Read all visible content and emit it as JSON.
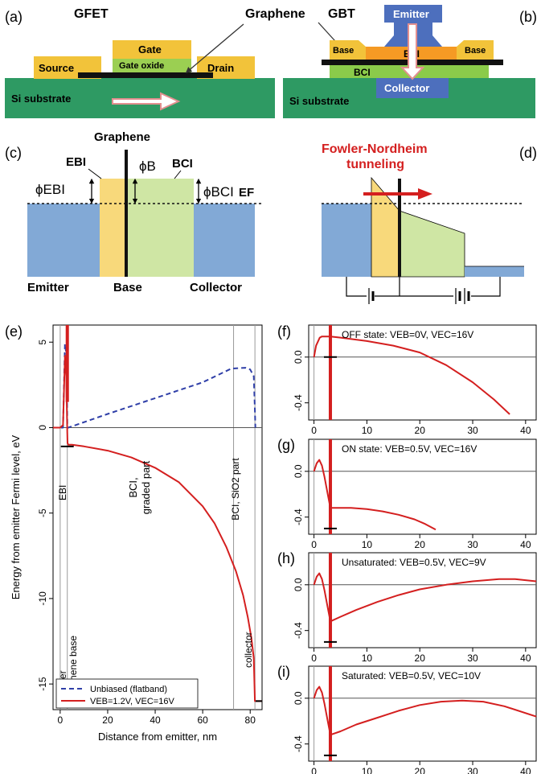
{
  "colors": {
    "substrate": "#2e9a63",
    "metal": "#f2c33a",
    "oxide": "#9bcf52",
    "graphene": "#111111",
    "ebi": "#f59a24",
    "bci": "#8bcb4a",
    "contact": "#4d6fbd",
    "emitter": "#82a9d6",
    "ebi_band": "#f8d97b",
    "bci_band": "#cfe6a4",
    "red": "#d41f1f",
    "blue_dash": "#2f3fa8"
  },
  "panel_a": {
    "letter": "(a)",
    "title": "GFET",
    "gate": "Gate",
    "gate_oxide": "Gate oxide",
    "source": "Source",
    "drain": "Drain",
    "substrate": "Si substrate",
    "graphene": "Graphene"
  },
  "panel_b": {
    "letter": "(b)",
    "title": "GBT",
    "emitter": "Emitter",
    "base_left": "Base",
    "base_right": "Base",
    "ebi": "EBI",
    "bci": "BCI",
    "collector": "Collector",
    "substrate": "Si substrate"
  },
  "panel_c": {
    "letter": "(c)",
    "graphene": "Graphene",
    "ebi": "EBI",
    "bci": "BCI",
    "phi_b": "ϕB",
    "phi_ebi": "ϕEBI",
    "phi_bci": "ϕBCI",
    "ef": "EF",
    "emitter": "Emitter",
    "base": "Base",
    "collector": "Collector"
  },
  "panel_d": {
    "letter": "(d)",
    "title_line1": "Fowler-Nordheim",
    "title_line2": "tunneling"
  },
  "panel_e": {
    "letter": "(e)",
    "ylabel": "Energy from emitter Fermi level, eV",
    "xlabel": "Distance from emitter, nm",
    "region_emitter": "emitter",
    "region_ebi": "EBI",
    "region_graphene": "graphene base",
    "region_bci_graded_1": "BCI,",
    "region_bci_graded_2": "graded part",
    "region_bci_sio2": "BCI, SiO2 part",
    "region_collector": "collector",
    "legend_unbiased": "Unbiased (flatband)",
    "legend_biased": "VEB=1.2V, VEC=16V"
  },
  "panel_f": {
    "letter": "(f)",
    "label": "OFF state: VEB=0V, VEC=16V"
  },
  "panel_g": {
    "letter": "(g)",
    "label": "ON state: VEB=0.5V, VEC=16V"
  },
  "panel_h": {
    "letter": "(h)",
    "label": "Unsaturated: VEB=0.5V, VEC=9V"
  },
  "panel_i": {
    "letter": "(i)",
    "label": "Saturated: VEB=0.5V, VEC=10V"
  },
  "chart_data": [
    {
      "panel": "(e)",
      "type": "line",
      "xlabel": "Distance from emitter, nm",
      "ylabel": "Energy from emitter Fermi level, eV",
      "xlim": [
        -3,
        85
      ],
      "ylim": [
        -16.5,
        6
      ],
      "xticks": [
        0,
        20,
        40,
        60,
        80
      ],
      "yticks": [
        -15,
        -10,
        -5,
        0,
        5
      ],
      "legend_position": "bottom-left",
      "series": [
        {
          "name": "Unbiased (flatband)",
          "style": "dashed",
          "color": "#2f3fa8",
          "x": [
            -3,
            1.2,
            2.0,
            2.7,
            2.9,
            3.0,
            3.1,
            3.4,
            20,
            40,
            60,
            72,
            78,
            80,
            81.5,
            82,
            82.2
          ],
          "y": [
            0,
            0,
            4.9,
            4.2,
            1.6,
            0.3,
            0.0,
            0.0,
            0.8,
            1.72,
            2.65,
            3.45,
            3.5,
            3.4,
            3.0,
            1.0,
            0
          ]
        },
        {
          "name": "VEB=1.2V, VEC=16V",
          "style": "solid",
          "color": "#d41f1f",
          "x": [
            -3,
            0,
            1.2,
            2.0,
            2.6,
            2.9,
            3.0,
            3.1,
            3.4,
            5,
            10,
            20,
            30,
            40,
            50,
            60,
            65,
            70,
            74,
            77,
            79,
            80.5,
            81.5,
            82,
            82.3,
            85
          ],
          "y": [
            0,
            0,
            0.15,
            4.2,
            3.0,
            0.5,
            -0.3,
            -0.9,
            -1.0,
            -1.0,
            -1.1,
            -1.35,
            -1.75,
            -2.35,
            -3.2,
            -4.6,
            -5.6,
            -7.0,
            -8.4,
            -9.8,
            -11.1,
            -12.3,
            -13.5,
            -16.0,
            -16.0,
            -16.0
          ]
        }
      ]
    },
    {
      "panel": "(f)",
      "type": "line",
      "xlim": [
        -1,
        42
      ],
      "ylim": [
        -0.55,
        0.28
      ],
      "xticks": [
        0,
        10,
        20,
        30,
        40
      ],
      "yticks": [
        0.0,
        -0.4
      ],
      "series": [
        {
          "name": "",
          "color": "#d41f1f",
          "x": [
            0,
            0.4,
            0.8,
            1.1,
            1.5,
            2.5,
            3.1,
            5,
            10,
            15,
            20,
            25,
            30,
            34,
            37
          ],
          "y": [
            0,
            0.1,
            0.14,
            0.17,
            0.18,
            0.18,
            0.18,
            0.17,
            0.14,
            0.1,
            0.04,
            -0.07,
            -0.22,
            -0.37,
            -0.5
          ]
        }
      ]
    },
    {
      "panel": "(g)",
      "type": "line",
      "xlim": [
        -1,
        42
      ],
      "ylim": [
        -0.55,
        0.28
      ],
      "xticks": [
        0,
        10,
        20,
        30,
        40
      ],
      "yticks": [
        0.0,
        -0.4
      ],
      "series": [
        {
          "name": "",
          "color": "#d41f1f",
          "x": [
            0,
            0.5,
            1.0,
            1.5,
            2.0,
            2.6,
            3.1,
            4,
            7,
            10,
            13,
            16,
            19,
            21,
            23
          ],
          "y": [
            0,
            0.07,
            0.1,
            0.05,
            -0.05,
            -0.2,
            -0.32,
            -0.32,
            -0.32,
            -0.33,
            -0.35,
            -0.38,
            -0.42,
            -0.46,
            -0.51
          ]
        }
      ]
    },
    {
      "panel": "(h)",
      "type": "line",
      "xlim": [
        -1,
        42
      ],
      "ylim": [
        -0.55,
        0.28
      ],
      "xticks": [
        0,
        10,
        20,
        30,
        40
      ],
      "yticks": [
        0.0,
        -0.4
      ],
      "series": [
        {
          "name": "",
          "color": "#d41f1f",
          "x": [
            0,
            0.5,
            1.0,
            1.5,
            2.0,
            2.6,
            3.1,
            5,
            8,
            12,
            16,
            20,
            25,
            30,
            35,
            38,
            42
          ],
          "y": [
            0,
            0.07,
            0.1,
            0.05,
            -0.05,
            -0.2,
            -0.32,
            -0.28,
            -0.22,
            -0.15,
            -0.09,
            -0.04,
            0.0,
            0.03,
            0.05,
            0.05,
            0.03
          ]
        }
      ]
    },
    {
      "panel": "(i)",
      "type": "line",
      "xlim": [
        -1,
        42
      ],
      "ylim": [
        -0.55,
        0.28
      ],
      "xticks": [
        0,
        10,
        20,
        30,
        40
      ],
      "yticks": [
        0.0,
        -0.4
      ],
      "series": [
        {
          "name": "",
          "color": "#d41f1f",
          "x": [
            0,
            0.5,
            1.0,
            1.5,
            2.0,
            2.6,
            3.1,
            5,
            8,
            12,
            16,
            20,
            24,
            28,
            32,
            36,
            42
          ],
          "y": [
            0,
            0.07,
            0.1,
            0.05,
            -0.05,
            -0.2,
            -0.32,
            -0.29,
            -0.23,
            -0.17,
            -0.11,
            -0.06,
            -0.03,
            -0.02,
            -0.03,
            -0.07,
            -0.16
          ]
        }
      ]
    }
  ]
}
